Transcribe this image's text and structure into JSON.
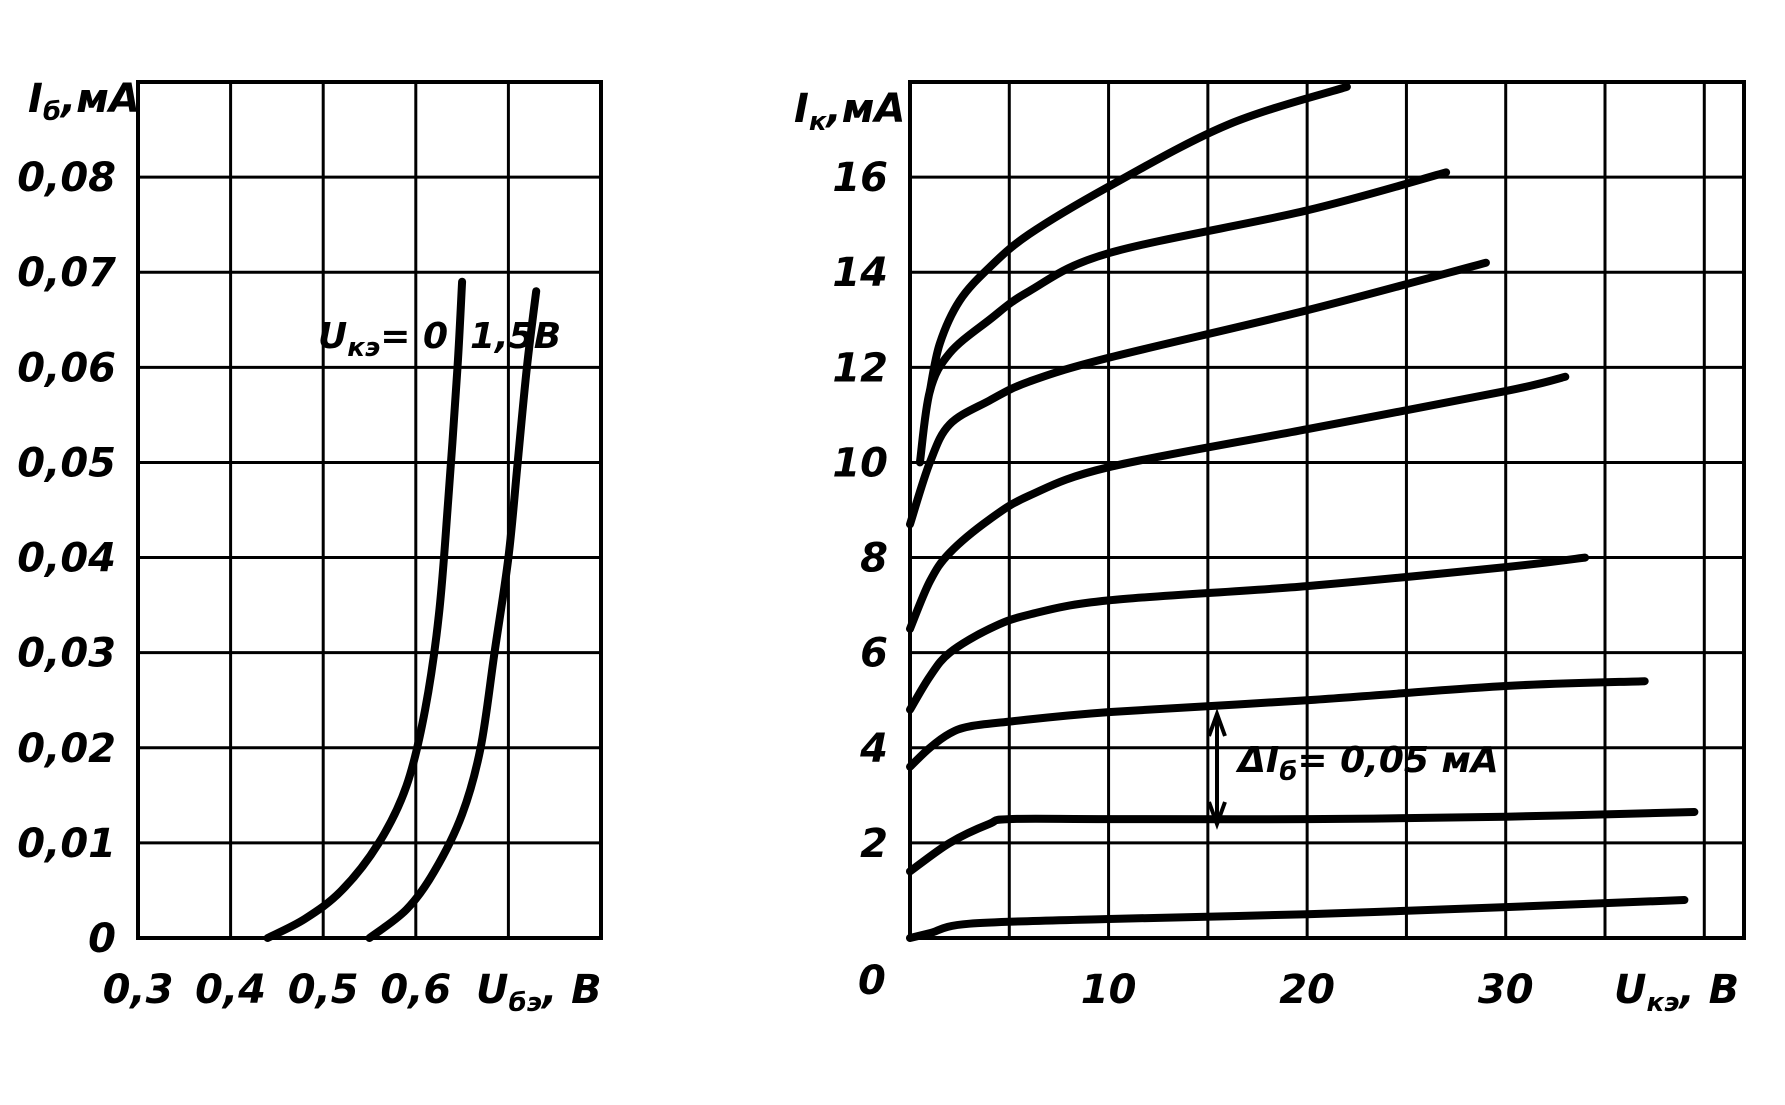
{
  "chart_data": [
    {
      "type": "line",
      "ylabel": {
        "main": "I",
        "sub": "б",
        "unit": ",мА"
      },
      "xlabel": {
        "main": "U",
        "sub": "бэ",
        "unit": ", В"
      },
      "x_ticks": [
        "0,3",
        "0,4",
        "0,5",
        "0,6"
      ],
      "y_ticks": [
        "0",
        "0,01",
        "0,02",
        "0,03",
        "0,04",
        "0,05",
        "0,06",
        "0,07",
        "0,08"
      ],
      "xlim": [
        0.3,
        0.8
      ],
      "ylim": [
        0,
        0.09
      ],
      "grid": true,
      "annotations": [
        {
          "main": "U",
          "sub": "кэ",
          "text": "= 0"
        },
        {
          "text": "1,5В"
        }
      ],
      "series": [
        {
          "x": [
            0.44,
            0.48,
            0.52,
            0.56,
            0.59,
            0.61,
            0.625,
            0.635,
            0.645,
            0.65
          ],
          "y": [
            0,
            0.002,
            0.005,
            0.01,
            0.016,
            0.024,
            0.034,
            0.046,
            0.06,
            0.069
          ]
        },
        {
          "x": [
            0.55,
            0.59,
            0.62,
            0.65,
            0.67,
            0.685,
            0.7,
            0.71,
            0.72,
            0.73
          ],
          "y": [
            0,
            0.003,
            0.007,
            0.013,
            0.02,
            0.03,
            0.04,
            0.05,
            0.06,
            0.068
          ]
        }
      ]
    },
    {
      "type": "line",
      "ylabel": {
        "main": "I",
        "sub": "к",
        "unit": ",мА"
      },
      "xlabel": {
        "main": "U",
        "sub": "кэ",
        "unit": ", В"
      },
      "x_ticks": [
        "0",
        "10",
        "20",
        "30"
      ],
      "y_ticks": [
        "2",
        "4",
        "6",
        "8",
        "10",
        "12",
        "14",
        "16"
      ],
      "xlim": [
        0,
        42
      ],
      "ylim": [
        0,
        18
      ],
      "grid": true,
      "annotations": [
        {
          "text": "ΔI",
          "sub": "б",
          "tail": "= 0,05 мА"
        }
      ],
      "series": [
        {
          "x": [
            0,
            1,
            3,
            10,
            20,
            30,
            39
          ],
          "y": [
            0,
            0.1,
            0.3,
            0.4,
            0.5,
            0.65,
            0.8
          ]
        },
        {
          "x": [
            0,
            2,
            4,
            5,
            10,
            20,
            30,
            39.5
          ],
          "y": [
            1.4,
            2.0,
            2.4,
            2.5,
            2.5,
            2.5,
            2.55,
            2.65
          ]
        },
        {
          "x": [
            0,
            1,
            2,
            3,
            5,
            10,
            20,
            30,
            37
          ],
          "y": [
            3.6,
            4.0,
            4.3,
            4.45,
            4.55,
            4.75,
            5.0,
            5.3,
            5.4
          ]
        },
        {
          "x": [
            0,
            1,
            2,
            4,
            6,
            10,
            20,
            30,
            34
          ],
          "y": [
            4.8,
            5.5,
            6.0,
            6.5,
            6.8,
            7.1,
            7.4,
            7.8,
            8.0
          ]
        },
        {
          "x": [
            0,
            1,
            2,
            4,
            6,
            10,
            20,
            30,
            33
          ],
          "y": [
            6.5,
            7.5,
            8.1,
            8.8,
            9.3,
            9.9,
            10.7,
            11.5,
            11.8
          ]
        },
        {
          "x": [
            0,
            1,
            2,
            4,
            6,
            10,
            20,
            29
          ],
          "y": [
            8.7,
            10.0,
            10.8,
            11.3,
            11.7,
            12.2,
            13.2,
            14.2
          ]
        },
        {
          "x": [
            0.5,
            1,
            2,
            4,
            6,
            10,
            20,
            27
          ],
          "y": [
            10.0,
            11.5,
            12.3,
            13.0,
            13.6,
            14.4,
            15.3,
            16.1
          ]
        },
        {
          "x": [
            1,
            1.5,
            2.5,
            4,
            6,
            10,
            16,
            22
          ],
          "y": [
            11.5,
            12.5,
            13.4,
            14.1,
            14.8,
            15.8,
            17.1,
            17.9
          ]
        }
      ]
    }
  ]
}
